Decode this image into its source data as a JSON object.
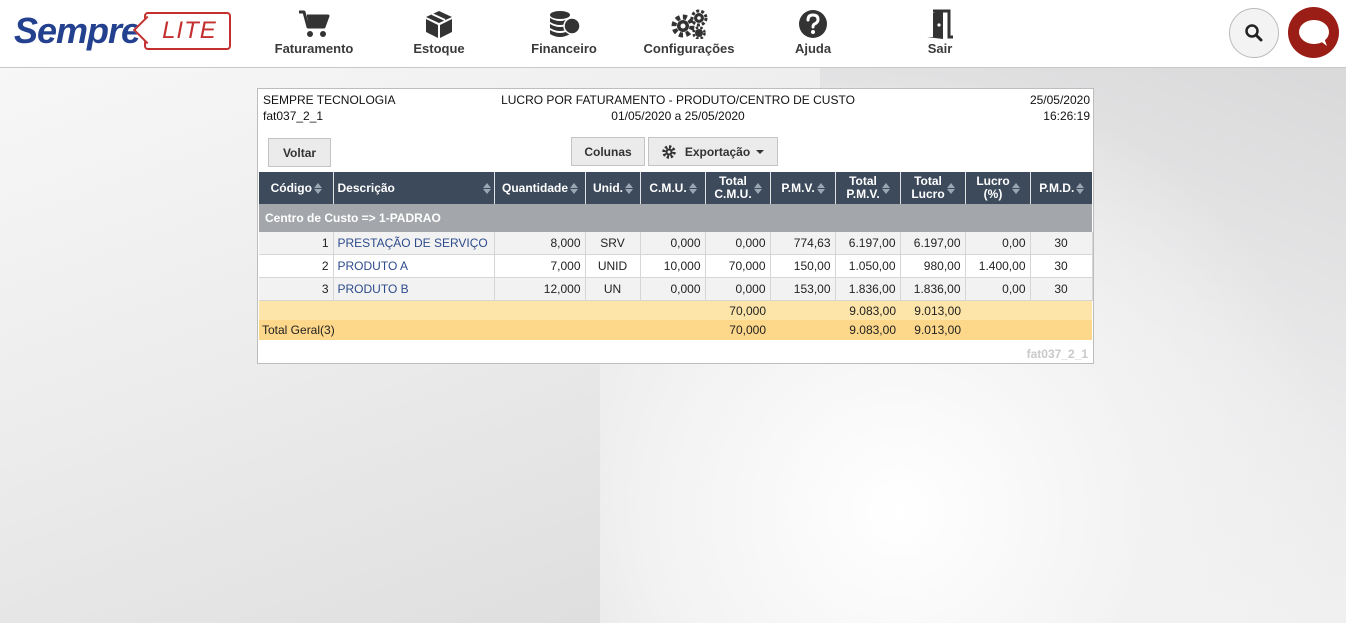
{
  "brand": {
    "name": "Sempre",
    "tag": "LITE"
  },
  "nav": [
    {
      "label": "Faturamento",
      "icon": "cart-icon"
    },
    {
      "label": "Estoque",
      "icon": "box-icon"
    },
    {
      "label": "Financeiro",
      "icon": "coins-icon"
    },
    {
      "label": "Configurações",
      "icon": "gears-icon"
    },
    {
      "label": "Ajuda",
      "icon": "question-icon"
    },
    {
      "label": "Sair",
      "icon": "door-exit-icon"
    }
  ],
  "report": {
    "company": "SEMPRE TECNOLOGIA",
    "code": "fat037_2_1",
    "title": "LUCRO POR FATURAMENTO - PRODUTO/CENTRO DE CUSTO",
    "period": "01/05/2020 a 25/05/2020",
    "date": "25/05/2020",
    "time": "16:26:19",
    "footer_code": "fat037_2_1"
  },
  "toolbar": {
    "back": "Voltar",
    "columns": "Colunas",
    "export": "Exportação"
  },
  "columns": {
    "codigo": "Código",
    "descricao": "Descrição",
    "quantidade": "Quantidade",
    "unid": "Unid.",
    "cmu": "C.M.U.",
    "total_cmu_1": "Total",
    "total_cmu_2": "C.M.U.",
    "pmv": "P.M.V.",
    "total_pmv_1": "Total",
    "total_pmv_2": "P.M.V.",
    "total_lucro_1": "Total",
    "total_lucro_2": "Lucro",
    "lucro_pct_1": "Lucro",
    "lucro_pct_2": "(%)",
    "pmd": "P.M.D."
  },
  "group": {
    "label": "Centro de Custo => 1-PADRAO"
  },
  "rows": [
    {
      "codigo": "1",
      "descricao": "PRESTAÇÃO DE SERVIÇO",
      "quantidade": "8,000",
      "unid": "SRV",
      "cmu": "0,000",
      "total_cmu": "0,000",
      "pmv": "774,63",
      "total_pmv": "6.197,00",
      "total_lucro": "6.197,00",
      "lucro_pct": "0,00",
      "pmd": "30"
    },
    {
      "codigo": "2",
      "descricao": "PRODUTO A",
      "quantidade": "7,000",
      "unid": "UNID",
      "cmu": "10,000",
      "total_cmu": "70,000",
      "pmv": "150,00",
      "total_pmv": "1.050,00",
      "total_lucro": "980,00",
      "lucro_pct": "1.400,00",
      "pmd": "30"
    },
    {
      "codigo": "3",
      "descricao": "PRODUTO B",
      "quantidade": "12,000",
      "unid": "UN",
      "cmu": "0,000",
      "total_cmu": "0,000",
      "pmv": "153,00",
      "total_pmv": "1.836,00",
      "total_lucro": "1.836,00",
      "lucro_pct": "0,00",
      "pmd": "30"
    }
  ],
  "subtotal": {
    "total_cmu": "70,000",
    "total_pmv": "9.083,00",
    "total_lucro": "9.013,00"
  },
  "grand_total": {
    "label": "Total Geral(3)",
    "total_cmu": "70,000",
    "total_pmv": "9.083,00",
    "total_lucro": "9.013,00"
  },
  "colors": {
    "brand_blue": "#23418e",
    "brand_red": "#c3302f",
    "table_header": "#3d4a5b",
    "group_row": "#a3a6aa",
    "subtotal": "#fde4a8",
    "total": "#fdd78a",
    "chat": "#9b1e16"
  }
}
